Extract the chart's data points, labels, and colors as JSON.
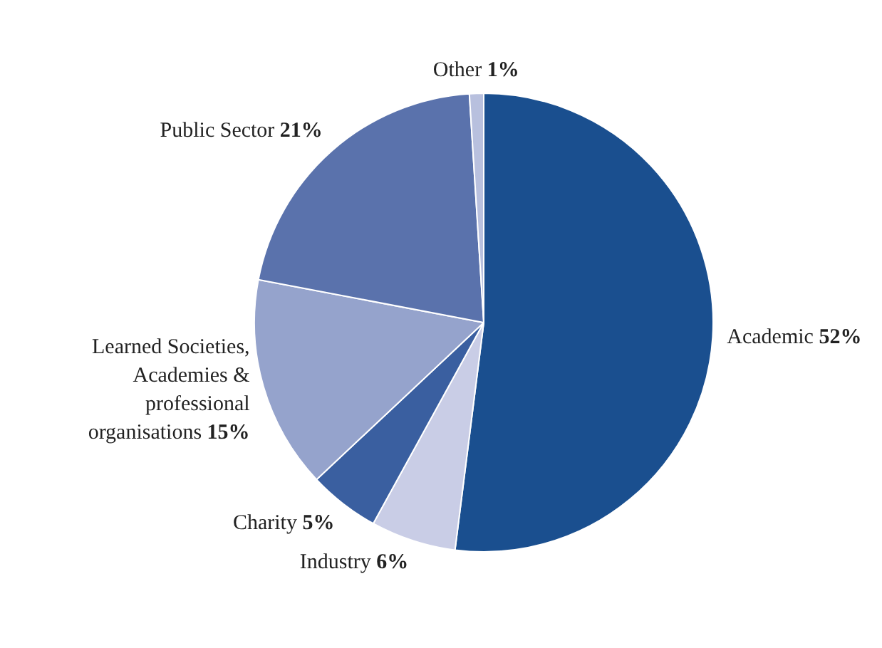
{
  "chart_data": {
    "type": "pie",
    "categories": [
      "Academic",
      "Industry",
      "Charity",
      "Learned Societies, Academies & professional organisations",
      "Public Sector",
      "Other"
    ],
    "values": [
      52,
      6,
      5,
      15,
      21,
      1
    ],
    "value_labels": [
      "52%",
      "6%",
      "5%",
      "15%",
      "21%",
      "1%"
    ],
    "colors": [
      "#1a4f8f",
      "#c9cde6",
      "#3a5fa0",
      "#95a3cc",
      "#5a72ac",
      "#b8c0de"
    ],
    "legend": false
  }
}
